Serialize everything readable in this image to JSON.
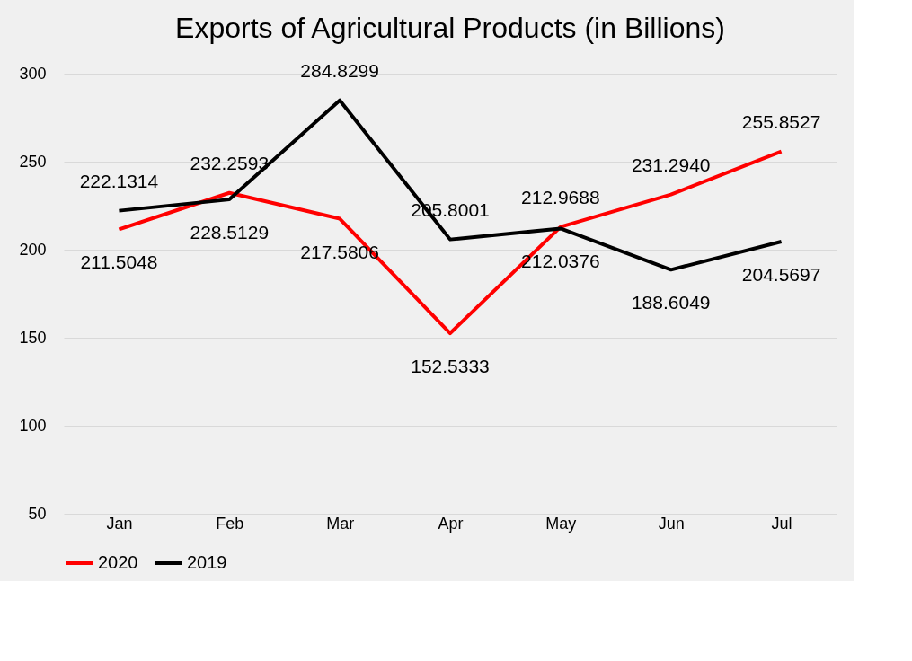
{
  "chart_data": {
    "type": "line",
    "title": "Exports of Agricultural Products (in Billions)",
    "categories": [
      "Jan",
      "Feb",
      "Mar",
      "Apr",
      "May",
      "Jun",
      "Jul"
    ],
    "series": [
      {
        "name": "2020",
        "color": "#ff0000",
        "values": [
          211.5048,
          232.2593,
          217.5806,
          152.5333,
          212.9688,
          231.294,
          255.8527
        ],
        "value_labels": [
          "211.5048",
          "232.2593",
          "217.5806",
          "152.5333",
          "212.9688",
          "231.2940",
          "255.8527"
        ]
      },
      {
        "name": "2019",
        "color": "#000000",
        "values": [
          222.1314,
          228.5129,
          284.8299,
          205.8001,
          212.0376,
          188.6049,
          204.5697
        ],
        "value_labels": [
          "222.1314",
          "228.5129",
          "284.8299",
          "205.8001",
          "212.0376",
          "188.6049",
          "204.5697"
        ]
      }
    ],
    "ylim": [
      50,
      300
    ],
    "yticks": [
      50,
      100,
      150,
      200,
      250,
      300
    ],
    "grid": "y",
    "legend": "bottom",
    "marker": "none",
    "line_style": "solid"
  }
}
